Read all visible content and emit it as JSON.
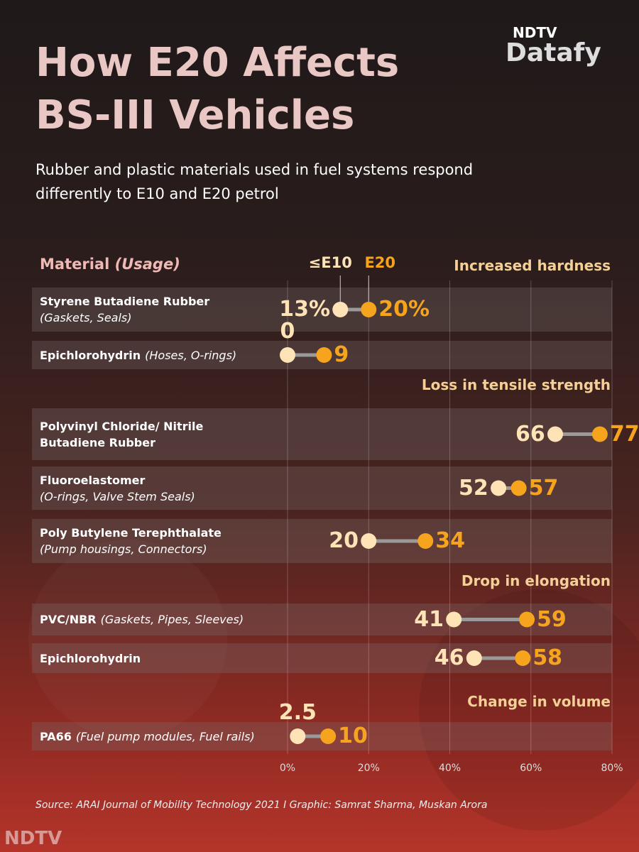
{
  "brand": {
    "top": "NDTV",
    "name": "Datafy",
    "footer": "NDTV"
  },
  "chart_data": {
    "type": "dumbbell",
    "title": "How E20 Affects BS-III Vehicles",
    "subtitle": "Rubber and plastic materials used in fuel systems respond differently to E10 and E20 petrol",
    "column_header": {
      "label": "Material",
      "usage": "(Usage)"
    },
    "legend": [
      {
        "name": "≤E10",
        "color": "#fde3b5"
      },
      {
        "name": "E20",
        "color": "#f6a31d"
      }
    ],
    "xlim": [
      0,
      80
    ],
    "xticks": [
      {
        "value": 0,
        "label": "0%"
      },
      {
        "value": 20,
        "label": "20%"
      },
      {
        "value": 40,
        "label": "40%"
      },
      {
        "value": 60,
        "label": "60%"
      },
      {
        "value": 80,
        "label": "80%"
      }
    ],
    "grid": true,
    "sections": [
      {
        "title": "Increased hardness",
        "categories": [
          "Styrene Butadiene Rubber",
          "Epichlorohydrin"
        ],
        "usages": [
          "(Gaskets, Seals)",
          "(Hoses, O-rings)"
        ],
        "e10": {
          "values": [
            13,
            0
          ],
          "value_labels": [
            "13%",
            "0"
          ]
        },
        "e20": {
          "values": [
            20,
            9
          ],
          "value_labels": [
            "20%",
            "9"
          ]
        }
      },
      {
        "title": "Loss in tensile strength",
        "categories": [
          "Polyvinyl Chloride/ Nitrile Butadiene Rubber",
          "Fluoroelastomer",
          "Poly Butylene Terephthalate"
        ],
        "usages": [
          null,
          "(O-rings, Valve Stem Seals)",
          "(Pump housings, Connectors)"
        ],
        "e10": {
          "values": [
            66,
            52,
            20
          ],
          "value_labels": [
            "66",
            "52",
            "20"
          ]
        },
        "e20": {
          "values": [
            77,
            57,
            34
          ],
          "value_labels": [
            "77",
            "57",
            "34"
          ]
        }
      },
      {
        "title": "Drop in elongation",
        "categories": [
          "PVC/NBR",
          "Epichlorohydrin"
        ],
        "usages": [
          "(Gaskets, Pipes, Sleeves)",
          null
        ],
        "e10": {
          "values": [
            41,
            46
          ],
          "value_labels": [
            "41",
            "46"
          ]
        },
        "e20": {
          "values": [
            59,
            58
          ],
          "value_labels": [
            "59",
            "58"
          ]
        }
      },
      {
        "title": "Change in volume",
        "categories": [
          "PA66"
        ],
        "usages": [
          "(Fuel pump modules, Fuel rails)"
        ],
        "e10": {
          "values": [
            2.5
          ],
          "value_labels": [
            "2.5"
          ]
        },
        "e20": {
          "values": [
            10
          ],
          "value_labels": [
            "10"
          ]
        }
      }
    ],
    "source": "Source: ARAI Journal of Mobility Technology 2021 I Graphic: Samrat Sharma, Muskan Arora"
  }
}
